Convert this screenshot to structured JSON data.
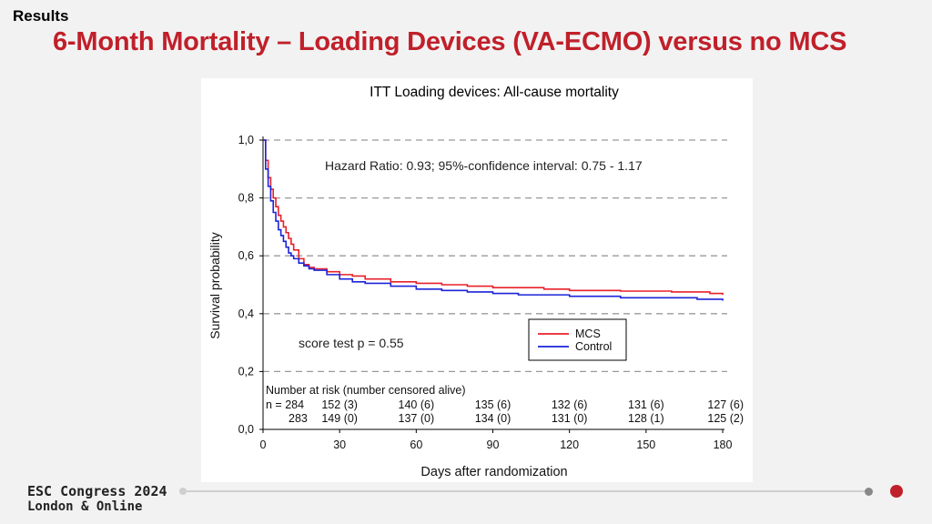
{
  "header": {
    "section": "Results",
    "title": "6-Month Mortality – Loading Devices (VA-ECMO) versus no MCS"
  },
  "footer": {
    "brand_line1": "ESC Congress 2024",
    "brand_line2": "London & Online"
  },
  "chart_data": {
    "type": "line",
    "title": "ITT Loading devices: All-cause mortality",
    "xlabel": "Days after randomization",
    "ylabel": "Survival probability",
    "xlim": [
      0,
      180
    ],
    "ylim": [
      0,
      1.0
    ],
    "xticks": [
      "0",
      "30",
      "60",
      "90",
      "120",
      "150",
      "180"
    ],
    "yticks": [
      "0,0",
      "0,2",
      "0,4",
      "0,6",
      "0,8",
      "1,0"
    ],
    "grid": "horizontal dashed",
    "legend_position": "right-middle",
    "annotations": {
      "hazard_ratio": "Hazard Ratio: 0.93; 95%-confidence interval: 0.75 - 1.17",
      "score_test": "score test p = 0.55"
    },
    "series": [
      {
        "name": "MCS",
        "color": "#e8202a",
        "x": [
          0,
          1,
          2,
          3,
          4,
          5,
          6,
          7,
          8,
          9,
          10,
          11,
          12,
          14,
          16,
          18,
          20,
          25,
          30,
          35,
          40,
          50,
          60,
          70,
          80,
          90,
          100,
          110,
          120,
          130,
          140,
          150,
          160,
          170,
          175,
          180
        ],
        "y": [
          1.0,
          0.93,
          0.87,
          0.83,
          0.8,
          0.77,
          0.74,
          0.72,
          0.7,
          0.68,
          0.66,
          0.64,
          0.62,
          0.59,
          0.57,
          0.56,
          0.555,
          0.545,
          0.535,
          0.53,
          0.52,
          0.51,
          0.505,
          0.5,
          0.495,
          0.49,
          0.49,
          0.485,
          0.48,
          0.48,
          0.478,
          0.478,
          0.475,
          0.475,
          0.47,
          0.465
        ]
      },
      {
        "name": "Control",
        "color": "#1c24d8",
        "x": [
          0,
          1,
          2,
          3,
          4,
          5,
          6,
          7,
          8,
          9,
          10,
          11,
          12,
          14,
          16,
          18,
          20,
          25,
          30,
          35,
          40,
          50,
          60,
          70,
          80,
          90,
          100,
          110,
          120,
          130,
          140,
          150,
          160,
          170,
          175,
          180
        ],
        "y": [
          1.0,
          0.9,
          0.84,
          0.79,
          0.75,
          0.72,
          0.69,
          0.67,
          0.65,
          0.63,
          0.61,
          0.6,
          0.59,
          0.575,
          0.565,
          0.555,
          0.55,
          0.535,
          0.52,
          0.51,
          0.505,
          0.495,
          0.485,
          0.48,
          0.475,
          0.47,
          0.465,
          0.465,
          0.46,
          0.46,
          0.455,
          0.455,
          0.455,
          0.45,
          0.45,
          0.445
        ]
      }
    ],
    "number_at_risk": {
      "title": "Number at risk (number censored alive)",
      "rows": [
        {
          "label": "n = 284",
          "values": [
            "152 (3)",
            "140 (6)",
            "135 (6)",
            "132 (6)",
            "131 (6)",
            "127 (6)"
          ]
        },
        {
          "label": "283",
          "values": [
            "149 (0)",
            "137 (0)",
            "134 (0)",
            "131 (0)",
            "128 (1)",
            "125 (2)"
          ]
        }
      ]
    }
  }
}
